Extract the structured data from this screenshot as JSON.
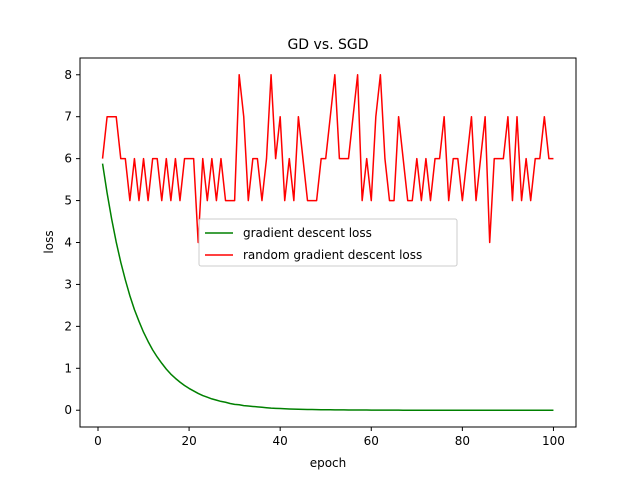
{
  "chart_data": {
    "type": "line",
    "title": "GD vs. SGD",
    "xlabel": "epoch",
    "ylabel": "loss",
    "xlim": [
      -3.95,
      104.95
    ],
    "ylim": [
      -0.4,
      8.4
    ],
    "xticks": [
      0,
      20,
      40,
      60,
      80,
      100
    ],
    "yticks": [
      0,
      1,
      2,
      3,
      4,
      5,
      6,
      7,
      8
    ],
    "grid": false,
    "legend_position": "center",
    "series": [
      {
        "name": "gradient descent loss",
        "color": "#008000",
        "x_start": 1,
        "x_step": 1,
        "values": [
          5.88,
          5.18,
          4.56,
          4.01,
          3.53,
          3.11,
          2.73,
          2.4,
          2.12,
          1.86,
          1.64,
          1.44,
          1.27,
          1.12,
          0.98,
          0.86,
          0.76,
          0.67,
          0.59,
          0.52,
          0.46,
          0.4,
          0.35,
          0.31,
          0.27,
          0.24,
          0.21,
          0.19,
          0.16,
          0.14,
          0.13,
          0.11,
          0.1,
          0.09,
          0.08,
          0.07,
          0.06,
          0.05,
          0.045,
          0.04,
          0.035,
          0.03,
          0.027,
          0.024,
          0.021,
          0.018,
          0.016,
          0.014,
          0.012,
          0.011,
          0.01,
          0.009,
          0.008,
          0.007,
          0.006,
          0.005,
          0.005,
          0.004,
          0.004,
          0.003,
          0.003,
          0.003,
          0.002,
          0.002,
          0.002,
          0.002,
          0.001,
          0.001,
          0.001,
          0.001,
          0.001,
          0.001,
          0.001,
          0,
          0,
          0,
          0,
          0,
          0,
          0,
          0,
          0,
          0,
          0,
          0,
          0,
          0,
          0,
          0,
          0,
          0,
          0,
          0,
          0,
          0,
          0,
          0,
          0,
          0,
          0
        ]
      },
      {
        "name": "random gradient descent loss",
        "color": "#ff0000",
        "x_start": 1,
        "x_step": 1,
        "values": [
          6,
          7,
          7,
          7,
          6,
          6,
          5,
          6,
          5,
          6,
          5,
          6,
          6,
          5,
          6,
          5,
          6,
          5,
          6,
          6,
          6,
          4,
          6,
          5,
          6,
          5,
          6,
          5,
          5,
          5,
          8,
          7,
          5,
          6,
          6,
          5,
          6,
          8,
          6,
          7,
          5,
          6,
          5,
          7,
          6,
          5,
          5,
          5,
          6,
          6,
          7,
          8,
          6,
          6,
          6,
          7,
          8,
          5,
          6,
          5,
          7,
          8,
          6,
          5,
          5,
          7,
          6,
          5,
          5,
          6,
          5,
          6,
          5,
          6,
          6,
          7,
          5,
          6,
          6,
          5,
          6,
          7,
          5,
          6,
          7,
          4,
          6,
          6,
          6,
          7,
          5,
          7,
          5,
          6,
          5,
          6,
          6,
          7,
          6,
          6
        ]
      }
    ]
  }
}
